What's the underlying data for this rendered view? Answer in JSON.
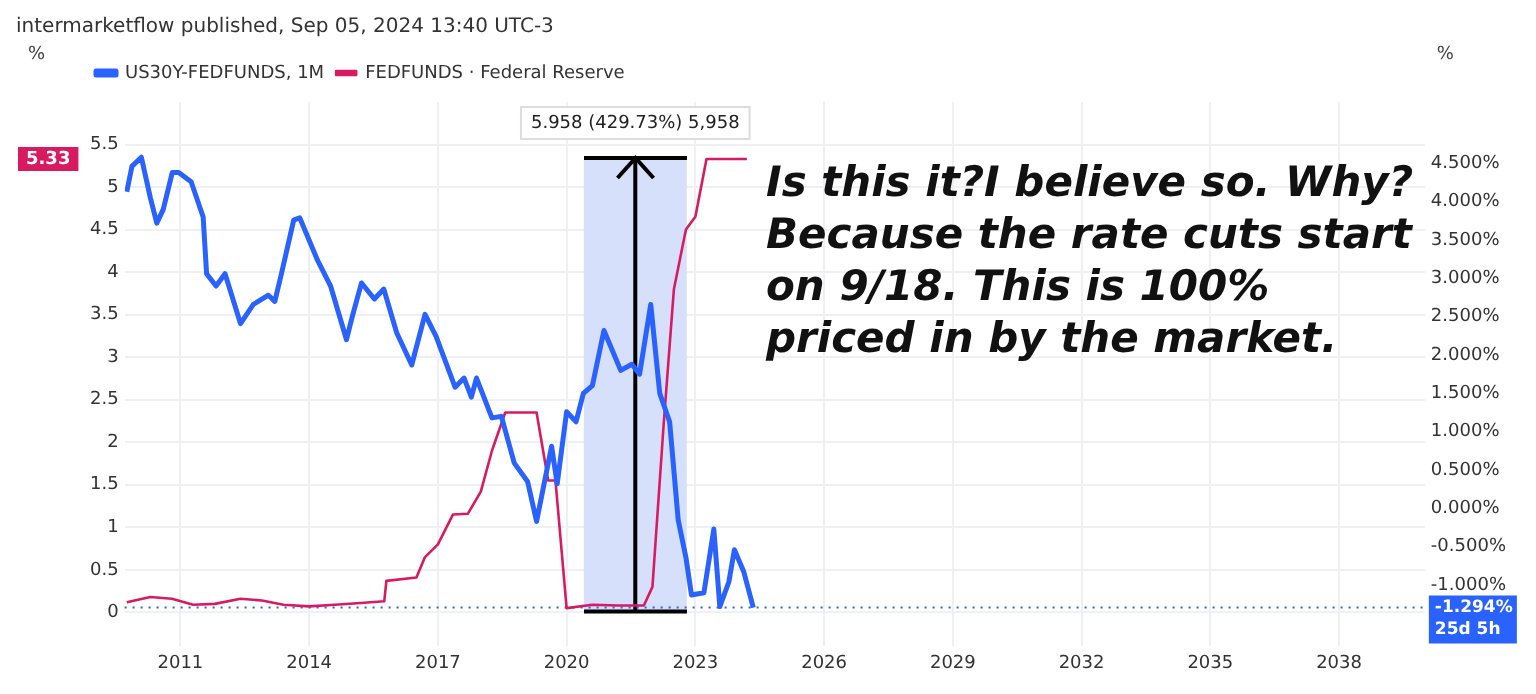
{
  "chart_data": {
    "type": "line",
    "annotations": [
      "intermarketflow published, Sep 05, 2024 13:40 UTC-3",
      "Is this it?I believe so. Why? Because the rate cuts start on 9/18. This is 100% priced in by the market.",
      "5.33"
    ],
    "ylabel": "%",
    "y2label": "%",
    "series": [
      {
        "name": "US30Y-FEDFUNDS, 1M",
        "color": "#2962ff",
        "axis": "y2",
        "x": [
          2009.75,
          2009.87,
          2010.09,
          2010.3,
          2010.45,
          2010.6,
          2010.81,
          2010.96,
          2011.25,
          2011.53,
          2011.61,
          2011.83,
          2012.04,
          2012.4,
          2012.7,
          2013.05,
          2013.2,
          2013.35,
          2013.64,
          2013.78,
          2014.2,
          2014.5,
          2014.87,
          2015.0,
          2015.22,
          2015.52,
          2015.74,
          2016.04,
          2016.39,
          2016.7,
          2016.96,
          2017.4,
          2017.61,
          2017.78,
          2017.9,
          2018.26,
          2018.48,
          2018.78,
          2019.09,
          2019.3,
          2019.65,
          2019.78,
          2020.0,
          2020.22,
          2020.39,
          2020.6,
          2020.87,
          2021.26,
          2021.52,
          2021.7,
          2021.96,
          2022.17,
          2022.4,
          2022.6,
          2022.78,
          2022.91,
          2023.2,
          2023.43,
          2023.57,
          2023.78,
          2023.91,
          2024.13,
          2024.35
        ],
        "values": [
          4.13,
          4.46,
          4.58,
          4.05,
          3.72,
          3.9,
          4.38,
          4.38,
          4.26,
          3.8,
          3.06,
          2.9,
          3.06,
          2.41,
          2.66,
          2.78,
          2.7,
          3.05,
          3.76,
          3.79,
          3.23,
          2.9,
          2.2,
          2.49,
          2.94,
          2.73,
          2.86,
          2.29,
          1.87,
          2.53,
          2.24,
          1.58,
          1.7,
          1.45,
          1.7,
          1.18,
          1.2,
          0.59,
          0.35,
          -0.17,
          0.81,
          0.32,
          1.26,
          1.13,
          1.5,
          1.6,
          2.32,
          1.8,
          1.88,
          1.75,
          2.66,
          1.5,
          1.13,
          -0.15,
          -0.64,
          -1.13,
          -1.1,
          -0.27,
          -1.28,
          -0.96,
          -0.54,
          -0.83,
          -1.294
        ]
      },
      {
        "name": "FEDFUNDS · Federal Reserve",
        "color": "#d81b60",
        "axis": "y",
        "x": [
          2009.75,
          2010.3,
          2010.8,
          2011.3,
          2011.8,
          2012.4,
          2012.9,
          2013.4,
          2014.0,
          2014.6,
          2015.2,
          2015.75,
          2015.8,
          2016.5,
          2016.7,
          2017.0,
          2017.35,
          2017.7,
          2018.0,
          2018.26,
          2018.57,
          2019.3,
          2019.57,
          2019.74,
          2020.0,
          2020.6,
          2021.2,
          2021.8,
          2022.0,
          2022.26,
          2022.5,
          2022.78,
          2023.0,
          2023.26,
          2024.2
        ],
        "values": [
          0.12,
          0.18,
          0.16,
          0.09,
          0.1,
          0.16,
          0.14,
          0.09,
          0.07,
          0.09,
          0.11,
          0.13,
          0.37,
          0.41,
          0.65,
          0.8,
          1.15,
          1.16,
          1.42,
          1.9,
          2.35,
          2.35,
          1.55,
          1.55,
          0.05,
          0.09,
          0.08,
          0.08,
          0.3,
          2.2,
          3.8,
          4.5,
          4.65,
          5.33,
          5.33
        ]
      }
    ],
    "xlim": [
      2009.7,
      2040
    ],
    "xticks": [
      2011,
      2014,
      2017,
      2020,
      2023,
      2026,
      2029,
      2032,
      2035,
      2038
    ],
    "ylim": [
      -0.4,
      6
    ],
    "yticks": [
      0,
      0.5,
      1,
      1.5,
      2,
      2.5,
      3,
      3.5,
      4,
      4.5,
      5,
      5.5
    ],
    "y2lim": [
      -1.8,
      5.3
    ],
    "y2ticks": [
      {
        "value": -1,
        "label": "-1.000%"
      },
      {
        "value": -0.5,
        "label": "-0.500%"
      },
      {
        "value": 0,
        "label": "0.000%"
      },
      {
        "value": 0.5,
        "label": "0.500%"
      },
      {
        "value": 1,
        "label": "1.000%"
      },
      {
        "value": 1.5,
        "label": "1.500%"
      },
      {
        "value": 2,
        "label": "2.000%"
      },
      {
        "value": 2.5,
        "label": "2.500%"
      },
      {
        "value": 3,
        "label": "3.000%"
      },
      {
        "value": 3.5,
        "label": "3.500%"
      },
      {
        "value": 4,
        "label": "4.000%"
      },
      {
        "value": 4.5,
        "label": "4.500%"
      }
    ],
    "bands": [
      {
        "axis": "x",
        "from": 2020.4,
        "to": 2022.8,
        "label": "5.958 (429.73%) 5,958",
        "color": "#d6e0fb"
      }
    ],
    "ref_lines": [
      {
        "axis": "x",
        "value": 2021.6,
        "color": "#000000",
        "line_style": "solid"
      },
      {
        "axis": "y2",
        "value": -1.294,
        "label": "-1.294%\n25d 5h",
        "color": "#2962ff",
        "line_style": "dotted"
      }
    ],
    "grid": true,
    "legend": "top left",
    "line_style": "solid",
    "marker": "none"
  }
}
